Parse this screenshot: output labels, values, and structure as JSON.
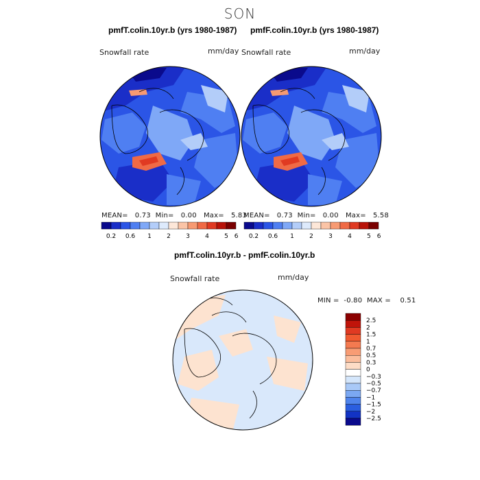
{
  "season": "SON",
  "panels": [
    {
      "title": "pmfT.colin.10yr.b (yrs 1980-1987)",
      "variable": "Snowfall rate",
      "units": "mm/day",
      "stats": {
        "mean_label": "MEAN=",
        "mean": "0.73",
        "min_label": "Min=",
        "min": "0.00",
        "max_label": "Max=",
        "max": "5.83"
      }
    },
    {
      "title": "pmfF.colin.10yr.b (yrs 1980-1987)",
      "variable": "Snowfall rate",
      "units": "mm/day",
      "stats": {
        "mean_label": "MEAN=",
        "mean": "0.73",
        "min_label": "Min=",
        "min": "0.00",
        "max_label": "Max=",
        "max": "5.58"
      }
    }
  ],
  "colorbar_top": {
    "colors": [
      "#0a0a8c",
      "#1a2ec8",
      "#2b55e6",
      "#4f7ff2",
      "#7fa8f7",
      "#b3cdf9",
      "#ddeafc",
      "#fde7d8",
      "#fbc4a6",
      "#f79a72",
      "#f06a45",
      "#e03a22",
      "#b81208",
      "#7a0000"
    ],
    "tick_labels": [
      "0.2",
      "0.6",
      "1",
      "2",
      "3",
      "4",
      "5",
      "6"
    ]
  },
  "diff": {
    "title": "pmfT.colin.10yr.b - pmfF.colin.10yr.b",
    "variable": "Snowfall rate",
    "units": "mm/day",
    "min_label": "MIN =",
    "min": "-0.80",
    "max_label": "MAX =",
    "max": "0.51",
    "legend_levels": [
      "2.5",
      "2",
      "1.5",
      "1",
      "0.7",
      "0.5",
      "0.3",
      "0",
      "−0.3",
      "−0.5",
      "−0.7",
      "−1",
      "−1.5",
      "−2",
      "−2.5"
    ],
    "legend_colors": [
      "#8b0000",
      "#c0140a",
      "#e03a22",
      "#f05a30",
      "#f47a50",
      "#f89c74",
      "#fbbd9c",
      "#fddcc6",
      "#ffffff",
      "#d4e6fb",
      "#a9c9f7",
      "#7ba8f2",
      "#4f84ec",
      "#2a5ee0",
      "#1233c4",
      "#0a0a8c"
    ]
  },
  "chart_data": [
    {
      "type": "heatmap",
      "title": "pmfT.colin.10yr.b (yrs 1980-1987)",
      "variable": "Snowfall rate",
      "units": "mm/day",
      "mean": 0.73,
      "min": 0.0,
      "max": 5.83,
      "levels": [
        0.2,
        0.6,
        1,
        2,
        3,
        4,
        5,
        6
      ]
    },
    {
      "type": "heatmap",
      "title": "pmfF.colin.10yr.b (yrs 1980-1987)",
      "variable": "Snowfall rate",
      "units": "mm/day",
      "mean": 0.73,
      "min": 0.0,
      "max": 5.58,
      "levels": [
        0.2,
        0.6,
        1,
        2,
        3,
        4,
        5,
        6
      ]
    },
    {
      "type": "heatmap",
      "title": "pmfT.colin.10yr.b - pmfF.colin.10yr.b",
      "variable": "Snowfall rate",
      "units": "mm/day",
      "min": -0.8,
      "max": 0.51,
      "levels": [
        -2.5,
        -2,
        -1.5,
        -1,
        -0.7,
        -0.5,
        -0.3,
        0,
        0.3,
        0.5,
        0.7,
        1,
        1.5,
        2,
        2.5
      ]
    }
  ]
}
